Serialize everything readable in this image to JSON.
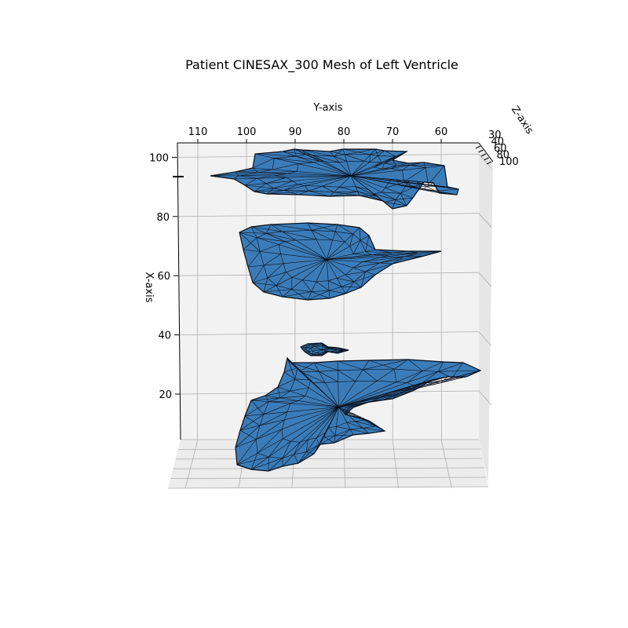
{
  "chart_data": {
    "type": "surface",
    "title": "Patient CINESAX_300 Mesh of Left Ventricle",
    "xlabel": "X-axis",
    "ylabel": "Y-axis",
    "zlabel": "Z-axis",
    "x_ticks": [
      "20",
      "40",
      "60",
      "80",
      "100"
    ],
    "y_ticks": [
      "110",
      "100",
      "90",
      "80",
      "70",
      "60"
    ],
    "z_ticks": [
      "30",
      "40",
      "60",
      "80",
      "100"
    ],
    "ylim": [
      55,
      115
    ],
    "xlim": [
      0,
      104
    ],
    "grid": true,
    "series": [
      {
        "color": "#3b7cb8",
        "edge_color": "#0a0f1a"
      }
    ]
  }
}
